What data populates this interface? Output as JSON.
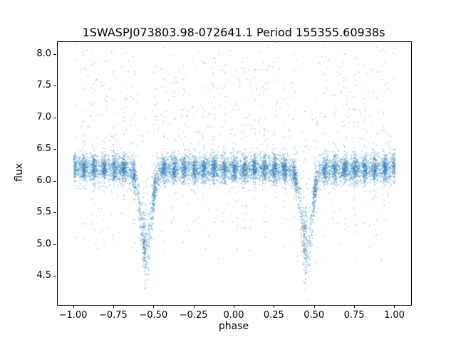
{
  "chart_data": {
    "type": "scatter",
    "title": "1SWASPJ073803.98-072641.1 Period 155355.60938s",
    "xlabel": "phase",
    "ylabel": "flux",
    "xlim": [
      -1.1,
      1.1
    ],
    "ylim": [
      4.05,
      8.2
    ],
    "x_ticks": {
      "values": [
        -1.0,
        -0.75,
        -0.5,
        -0.25,
        0.0,
        0.25,
        0.5,
        0.75,
        1.0
      ],
      "labels": [
        "−1.00",
        "−0.75",
        "−0.50",
        "−0.25",
        "0.00",
        "0.25",
        "0.50",
        "0.75",
        "1.00"
      ]
    },
    "y_ticks": {
      "values": [
        4.5,
        5.0,
        5.5,
        6.0,
        6.5,
        7.0,
        7.5,
        8.0
      ],
      "labels": [
        "4.5",
        "5.0",
        "5.5",
        "6.0",
        "6.5",
        "7.0",
        "7.5",
        "8.0"
      ]
    },
    "grid": false,
    "legend": null,
    "marker_color": "#1f77b4",
    "marker_alpha": 0.55,
    "marker_size_px": 1.2,
    "n_points": 12000,
    "model": {
      "description": "Phase-folded eclipsing-binary light curve: flat baseline with photometric scatter, upward outlier plumes at discrete phases, and one eclipse per period (appearing twice over phase range -1..1).",
      "phase_range": [
        -1.0,
        1.0
      ],
      "baseline_flux": 6.2,
      "noise_sd": 0.11,
      "outlier_fraction": 0.09,
      "outlier_up_max": 1.85,
      "outlier_down_max": 1.3,
      "eclipses": [
        {
          "center": -0.55,
          "depth": 1.3,
          "sigma": 0.033,
          "min_flux": 4.9
        },
        {
          "center": 0.45,
          "depth": 1.25,
          "sigma": 0.033,
          "min_flux": 4.95
        }
      ],
      "cluster_spacing": 0.0625,
      "cluster_sd": 0.008,
      "cluster_fraction": 0.45,
      "seed": 42
    }
  }
}
